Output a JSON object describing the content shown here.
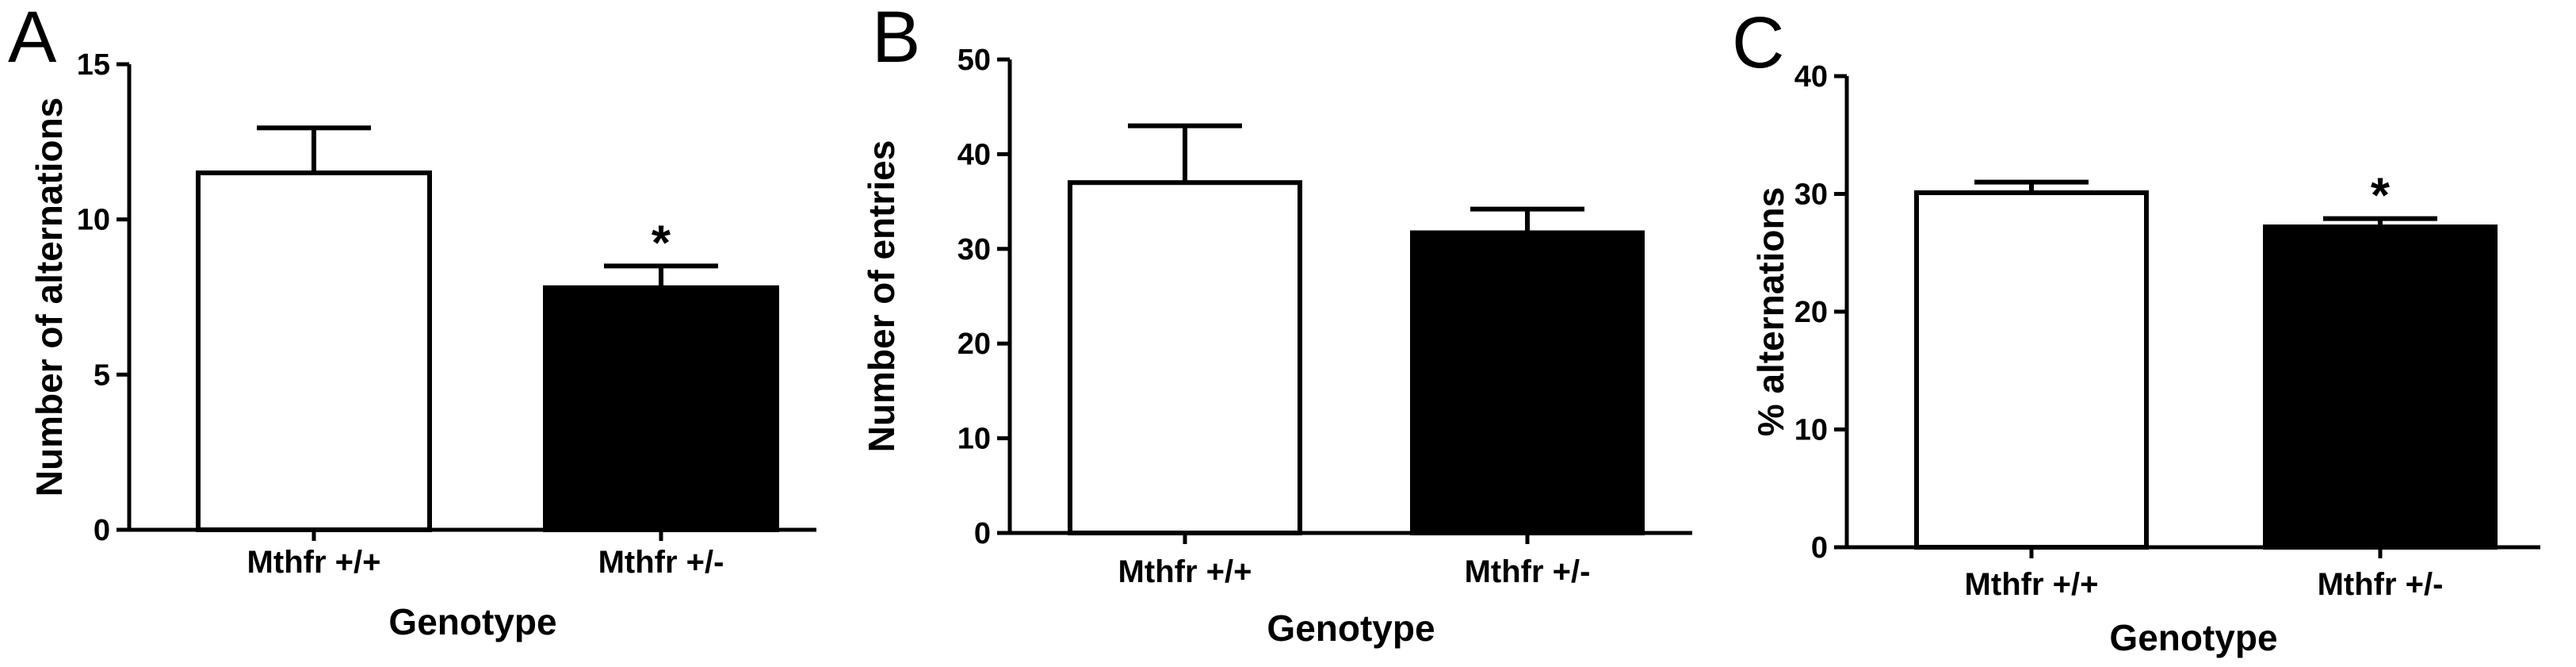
{
  "chart_data": [
    {
      "type": "bar",
      "panel": "A",
      "categories": [
        "Mthfr +/+",
        "Mthfr +/-"
      ],
      "values": [
        11.5,
        7.8
      ],
      "errors": [
        1.45,
        0.7
      ],
      "fills": [
        "#ffffff",
        "#000000"
      ],
      "significance": [
        "",
        "*"
      ],
      "xlabel": "Genotype",
      "ylabel": "Number of alternations",
      "ylim": [
        0,
        15
      ],
      "yticks": [
        0,
        5,
        10,
        15
      ]
    },
    {
      "type": "bar",
      "panel": "B",
      "categories": [
        "Mthfr +/+",
        "Mthfr +/-"
      ],
      "values": [
        37,
        31.7
      ],
      "errors": [
        6,
        2.5
      ],
      "fills": [
        "#ffffff",
        "#000000"
      ],
      "significance": [
        "",
        ""
      ],
      "xlabel": "Genotype",
      "ylabel": "Number of entries",
      "ylim": [
        0,
        50
      ],
      "yticks": [
        0,
        10,
        20,
        30,
        40,
        50
      ]
    },
    {
      "type": "bar",
      "panel": "C",
      "categories": [
        "Mthfr +/+",
        "Mthfr +/-"
      ],
      "values": [
        30.1,
        27.2
      ],
      "errors": [
        0.9,
        0.7
      ],
      "fills": [
        "#ffffff",
        "#000000"
      ],
      "significance": [
        "",
        "*"
      ],
      "xlabel": "Genotype",
      "ylabel": "% alternations",
      "ylim": [
        0,
        40
      ],
      "yticks": [
        0,
        10,
        20,
        30,
        40
      ]
    }
  ]
}
